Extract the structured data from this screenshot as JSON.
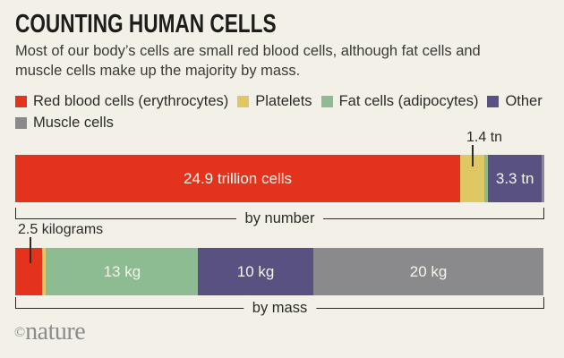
{
  "page": {
    "background": "#f2f0e7"
  },
  "header": {
    "title": "COUNTING HUMAN CELLS",
    "subtitle": "Most of our body’s cells are small red blood cells, although fat cells and muscle cells make up the majority by mass."
  },
  "legend": {
    "items": [
      {
        "label": "Red blood cells (erythrocytes)",
        "color": "#e4331d"
      },
      {
        "label": "Platelets",
        "color": "#dfc763"
      },
      {
        "label": "Fat cells (adipocytes)",
        "color": "#8dbb92"
      },
      {
        "label": "Other",
        "color": "#585181"
      },
      {
        "label": "Muscle cells",
        "color": "#8a8a8c"
      }
    ]
  },
  "chart_data": {
    "type": "bar",
    "variant": "stacked-horizontal",
    "legend_position": "top",
    "categories": [
      "Red blood cells (erythrocytes)",
      "Platelets",
      "Fat cells (adipocytes)",
      "Other",
      "Muscle cells"
    ],
    "bars": [
      {
        "id": "number",
        "axis_label": "by number",
        "callout": {
          "text": "1.4 tn",
          "target": "Platelets"
        },
        "segments": [
          {
            "name": "Red blood cells (erythrocytes)",
            "color": "#e4331d",
            "value_trillion": 24.9,
            "label": "24.9 trillion cells",
            "pct": 84.1
          },
          {
            "name": "Platelets",
            "color": "#dfc763",
            "value_trillion": 1.4,
            "label": "",
            "pct": 4.6
          },
          {
            "name": "Fat cells (adipocytes)",
            "color": "#8dbb92",
            "value_trillion": null,
            "label": "",
            "pct": 0.7
          },
          {
            "name": "Other",
            "color": "#585181",
            "value_trillion": 3.3,
            "label": "3.3 tn",
            "pct": 10.1
          },
          {
            "name": "Muscle cells",
            "color": "#8a8a8c",
            "value_trillion": null,
            "label": "",
            "pct": 0.5
          }
        ]
      },
      {
        "id": "mass",
        "axis_label": "by mass",
        "callout": {
          "text": "2.5 kilograms",
          "target": "Red blood cells (erythrocytes)"
        },
        "segments": [
          {
            "name": "Red blood cells (erythrocytes)",
            "color": "#e4331d",
            "value_kg": 2.5,
            "label": "",
            "pct": 5.1
          },
          {
            "name": "Platelets",
            "color": "#dfc763",
            "value_kg": null,
            "label": "",
            "pct": 0.7
          },
          {
            "name": "Fat cells (adipocytes)",
            "color": "#8dbb92",
            "value_kg": 13,
            "label": "13 kg",
            "pct": 28.8
          },
          {
            "name": "Other",
            "color": "#585181",
            "value_kg": 10,
            "label": "10 kg",
            "pct": 21.7
          },
          {
            "name": "Muscle cells",
            "color": "#8a8a8c",
            "value_kg": 20,
            "label": "20 kg",
            "pct": 43.6
          }
        ]
      }
    ]
  },
  "footer": {
    "copyright_symbol": "©",
    "brand": "nature"
  }
}
